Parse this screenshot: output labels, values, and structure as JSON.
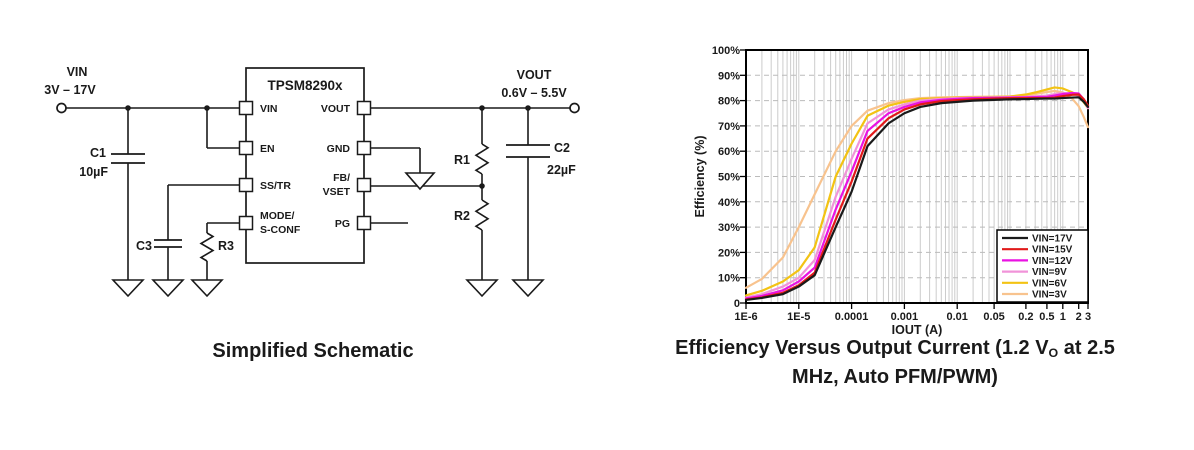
{
  "schematic": {
    "caption": "Simplified Schematic",
    "input": {
      "name": "VIN",
      "range": "3V – 17V"
    },
    "output": {
      "name": "VOUT",
      "range": "0.6V – 5.5V"
    },
    "ic": {
      "name": "TPSM8290x",
      "pins_left": {
        "pin1": "VIN",
        "pin2": "EN",
        "pin3": "SS/TR",
        "pin4_line1": "MODE/",
        "pin4_line2": "S-CONF"
      },
      "pins_right": {
        "pin1": "VOUT",
        "pin2": "GND",
        "pin3_line1": "FB/",
        "pin3_line2": "VSET",
        "pin4": "PG"
      }
    },
    "components": {
      "c1": {
        "ref": "C1",
        "value": "10µF"
      },
      "c2": {
        "ref": "C2",
        "value": "22µF"
      },
      "c3": {
        "ref": "C3"
      },
      "r1": {
        "ref": "R1"
      },
      "r2": {
        "ref": "R2"
      },
      "r3": {
        "ref": "R3"
      }
    }
  },
  "chart": {
    "caption": {
      "line1_pre": "Efficiency Versus Output Current (1.2 V",
      "line1_sub": "O",
      "line1_post": " at 2.5",
      "line2": "MHz, Auto PFM/PWM)"
    }
  },
  "chart_data": {
    "type": "line",
    "xlabel": "IOUT (A)",
    "ylabel": "Efficiency (%)",
    "x_scale": "log",
    "xlim": [
      1e-06,
      3
    ],
    "ylim": [
      0,
      100
    ],
    "grid": true,
    "legend_position": "bottom-right",
    "x_ticks": [
      {
        "v": 1e-06,
        "label": "1E-6"
      },
      {
        "v": 1e-05,
        "label": "1E-5"
      },
      {
        "v": 0.0001,
        "label": "0.0001"
      },
      {
        "v": 0.001,
        "label": "0.001"
      },
      {
        "v": 0.01,
        "label": "0.01"
      },
      {
        "v": 0.05,
        "label": "0.05"
      },
      {
        "v": 0.2,
        "label": "0.2"
      },
      {
        "v": 0.5,
        "label": "0.5"
      },
      {
        "v": 1,
        "label": "1"
      },
      {
        "v": 2,
        "label": "2"
      },
      {
        "v": 3,
        "label": "3"
      }
    ],
    "y_ticks": [
      {
        "v": 100,
        "label": "100%"
      },
      {
        "v": 90,
        "label": "90%"
      },
      {
        "v": 80,
        "label": "80%"
      },
      {
        "v": 70,
        "label": "70%"
      },
      {
        "v": 60,
        "label": "60%"
      },
      {
        "v": 50,
        "label": "50%"
      },
      {
        "v": 40,
        "label": "40%"
      },
      {
        "v": 30,
        "label": "30%"
      },
      {
        "v": 20,
        "label": "20%"
      },
      {
        "v": 10,
        "label": "10%"
      },
      {
        "v": 0,
        "label": "0"
      }
    ],
    "x": [
      1e-06,
      2e-06,
      5e-06,
      1e-05,
      2e-05,
      5e-05,
      0.0001,
      0.0002,
      0.0005,
      0.001,
      0.002,
      0.005,
      0.01,
      0.02,
      0.05,
      0.1,
      0.2,
      0.3,
      0.5,
      0.7,
      1,
      1.5,
      2,
      2.5,
      3
    ],
    "series": [
      {
        "name": "VIN=17V",
        "color": "#1a1a1a",
        "values": [
          1.2,
          2,
          3.5,
          6.5,
          11,
          30,
          44,
          62,
          71,
          75,
          77.5,
          79,
          79.5,
          80,
          80.3,
          80.5,
          80.6,
          80.7,
          80.8,
          80.8,
          81,
          81.2,
          81.3,
          79.5,
          77.5
        ]
      },
      {
        "name": "VIN=15V",
        "color": "#e11a1a",
        "values": [
          1.4,
          2.2,
          4,
          7,
          12,
          33,
          48,
          65,
          73,
          76.5,
          78.5,
          79.8,
          80.2,
          80.5,
          80.8,
          81,
          81,
          81,
          81,
          81.2,
          81.8,
          82.3,
          82.4,
          80.5,
          78
        ]
      },
      {
        "name": "VIN=12V",
        "color": "#ea12e2",
        "values": [
          1.8,
          2.8,
          5,
          8.5,
          14,
          37,
          52,
          68,
          75,
          77.5,
          79.3,
          80.3,
          80.7,
          81,
          81.1,
          81.2,
          81.3,
          81.4,
          81.5,
          82,
          82.6,
          83,
          82.8,
          80.5,
          77.5
        ]
      },
      {
        "name": "VIN=9V",
        "color": "#f193d9",
        "values": [
          2.2,
          3.5,
          6.5,
          10,
          17,
          42,
          57,
          71,
          76.5,
          78.5,
          80,
          80.7,
          81,
          81.2,
          81.3,
          81.4,
          81.5,
          81.7,
          82,
          82.6,
          83,
          82.6,
          82,
          79.8,
          77
        ]
      },
      {
        "name": "VIN=6V",
        "color": "#f3c313",
        "values": [
          3,
          4.8,
          8.5,
          13,
          22,
          50,
          63,
          74,
          78,
          79.5,
          80.6,
          81,
          81.2,
          81.4,
          81.5,
          81.6,
          82.4,
          83.2,
          84.4,
          85.2,
          84.8,
          83.3,
          81.8,
          79.3,
          77
        ]
      },
      {
        "name": "VIN=3V",
        "color": "#f8c38e",
        "values": [
          6,
          9.5,
          18,
          30,
          43,
          60,
          70,
          76,
          79,
          80.2,
          81,
          81.3,
          81.4,
          81.5,
          81.5,
          81.7,
          82,
          82.6,
          83.4,
          83.8,
          83.2,
          80.8,
          77.8,
          73.5,
          69.5
        ]
      }
    ]
  }
}
